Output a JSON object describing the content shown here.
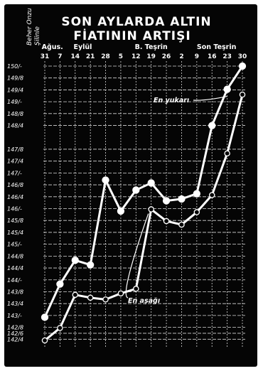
{
  "chart_data": {
    "type": "line",
    "title_line1": "SON AYLARDA ALTIN",
    "title_line2": "FİATININ ARTIŞI",
    "ylabel_line1": "Beher Onzu",
    "ylabel_line2": "Şilinle",
    "months": [
      "Ağus.",
      "Eylül",
      "B. Teşrin",
      "Son Teşrin"
    ],
    "categories": [
      "31",
      "7",
      "14",
      "21",
      "28",
      "5",
      "12",
      "19",
      "26",
      "2",
      "9",
      "16",
      "23",
      "30"
    ],
    "y_tick_labels": [
      "150/-",
      "149/8",
      "149/4",
      "149/-",
      "148/8",
      "148/4",
      "147/8",
      "147/4",
      "147/-",
      "146/8",
      "146/4",
      "146/-",
      "145/8",
      "145/4",
      "145/-",
      "144/8",
      "144/4",
      "144/-",
      "143/8",
      "143/4",
      "143/-",
      "142/8",
      "142/6",
      "142/4"
    ],
    "y_tick_values": [
      150,
      149.667,
      149.333,
      149,
      148.667,
      148.333,
      147.667,
      147.333,
      147,
      146.667,
      146.333,
      146,
      145.667,
      145.333,
      145,
      144.667,
      144.333,
      144,
      143.667,
      143.333,
      143,
      142.667,
      142.5,
      142.333
    ],
    "ylim": [
      142.2,
      150.1
    ],
    "series": [
      {
        "name": "En yukarı",
        "values": [
          142.95,
          143.88,
          144.55,
          144.42,
          146.8,
          145.93,
          146.52,
          146.72,
          146.22,
          146.27,
          146.42,
          148.33,
          149.35,
          150.0
        ]
      },
      {
        "name": "En aşağı",
        "values": [
          142.3,
          142.65,
          143.58,
          143.5,
          143.45,
          143.62,
          143.75,
          145.98,
          145.65,
          145.55,
          145.9,
          146.38,
          147.55,
          149.2
        ]
      }
    ],
    "grid": true
  }
}
